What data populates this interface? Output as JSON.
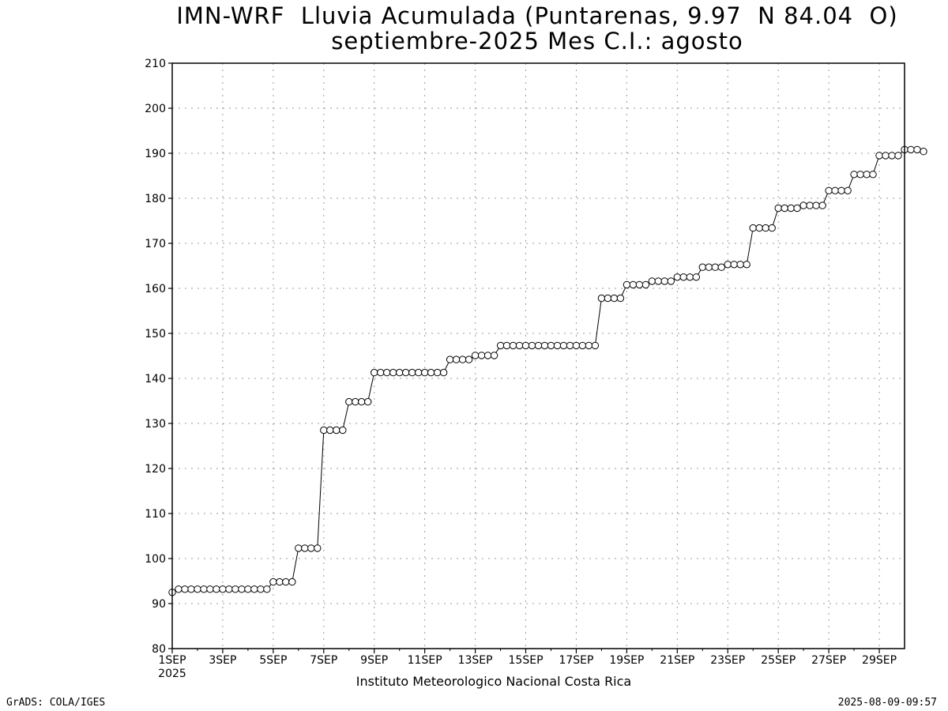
{
  "header": {
    "title_line1": "IMN-WRF  Lluvia Acumulada (Puntarenas, 9.97  N 84.04  O)",
    "title_line2": "septiembre-2025 Mes C.I.: agosto"
  },
  "footer": {
    "left": "GrADS: COLA/IGES",
    "right": "2025-08-09-09:57",
    "credit": "Instituto Meteorologico Nacional Costa Rica"
  },
  "chart_data": {
    "type": "line",
    "title": "IMN-WRF  Lluvia Acumulada (Puntarenas, 9.97  N 84.04  O)",
    "subtitle": "septiembre-2025 Mes C.I.: agosto",
    "xlabel": "",
    "ylabel": "",
    "x_unit": "days since 1SEP 2025",
    "xlim": [
      0,
      29
    ],
    "ylim": [
      80,
      210
    ],
    "yticks": [
      80,
      90,
      100,
      110,
      120,
      130,
      140,
      150,
      160,
      170,
      180,
      190,
      200,
      210
    ],
    "xticks": [
      {
        "x": 0,
        "label": "1SEP",
        "sublabel": "2025"
      },
      {
        "x": 2,
        "label": "3SEP"
      },
      {
        "x": 4,
        "label": "5SEP"
      },
      {
        "x": 6,
        "label": "7SEP"
      },
      {
        "x": 8,
        "label": "9SEP"
      },
      {
        "x": 10,
        "label": "11SEP"
      },
      {
        "x": 12,
        "label": "13SEP"
      },
      {
        "x": 14,
        "label": "15SEP"
      },
      {
        "x": 16,
        "label": "17SEP"
      },
      {
        "x": 18,
        "label": "19SEP"
      },
      {
        "x": 20,
        "label": "21SEP"
      },
      {
        "x": 22,
        "label": "23SEP"
      },
      {
        "x": 24,
        "label": "25SEP"
      },
      {
        "x": 26,
        "label": "27SEP"
      },
      {
        "x": 28,
        "label": "29SEP"
      }
    ],
    "grid": true,
    "marker": "open-circle",
    "step_days": 0.25,
    "series": [
      {
        "name": "Lluvia Acumulada",
        "values": [
          92.5,
          93.2,
          93.2,
          93.2,
          93.2,
          93.2,
          93.2,
          93.2,
          93.2,
          93.2,
          93.2,
          93.2,
          93.2,
          93.2,
          93.2,
          93.2,
          94.8,
          94.8,
          94.8,
          94.8,
          102.3,
          102.3,
          102.3,
          102.3,
          128.5,
          128.5,
          128.5,
          128.5,
          134.8,
          134.8,
          134.8,
          134.8,
          141.3,
          141.3,
          141.3,
          141.3,
          141.3,
          141.3,
          141.3,
          141.3,
          141.3,
          141.3,
          141.3,
          141.3,
          144.2,
          144.2,
          144.2,
          144.2,
          145.1,
          145.1,
          145.1,
          145.1,
          147.3,
          147.3,
          147.3,
          147.3,
          147.3,
          147.3,
          147.3,
          147.3,
          147.3,
          147.3,
          147.3,
          147.3,
          147.3,
          147.3,
          147.3,
          147.3,
          157.8,
          157.8,
          157.8,
          157.8,
          160.8,
          160.8,
          160.8,
          160.8,
          161.6,
          161.6,
          161.6,
          161.6,
          162.5,
          162.5,
          162.5,
          162.5,
          164.7,
          164.7,
          164.7,
          164.7,
          165.3,
          165.3,
          165.3,
          165.3,
          173.4,
          173.4,
          173.4,
          173.4,
          177.8,
          177.8,
          177.8,
          177.8,
          178.4,
          178.4,
          178.4,
          178.4,
          181.7,
          181.7,
          181.7,
          181.7,
          185.3,
          185.3,
          185.3,
          185.3,
          189.5,
          189.5,
          189.5,
          189.5,
          190.8,
          190.8,
          190.8,
          190.4
        ]
      }
    ]
  }
}
